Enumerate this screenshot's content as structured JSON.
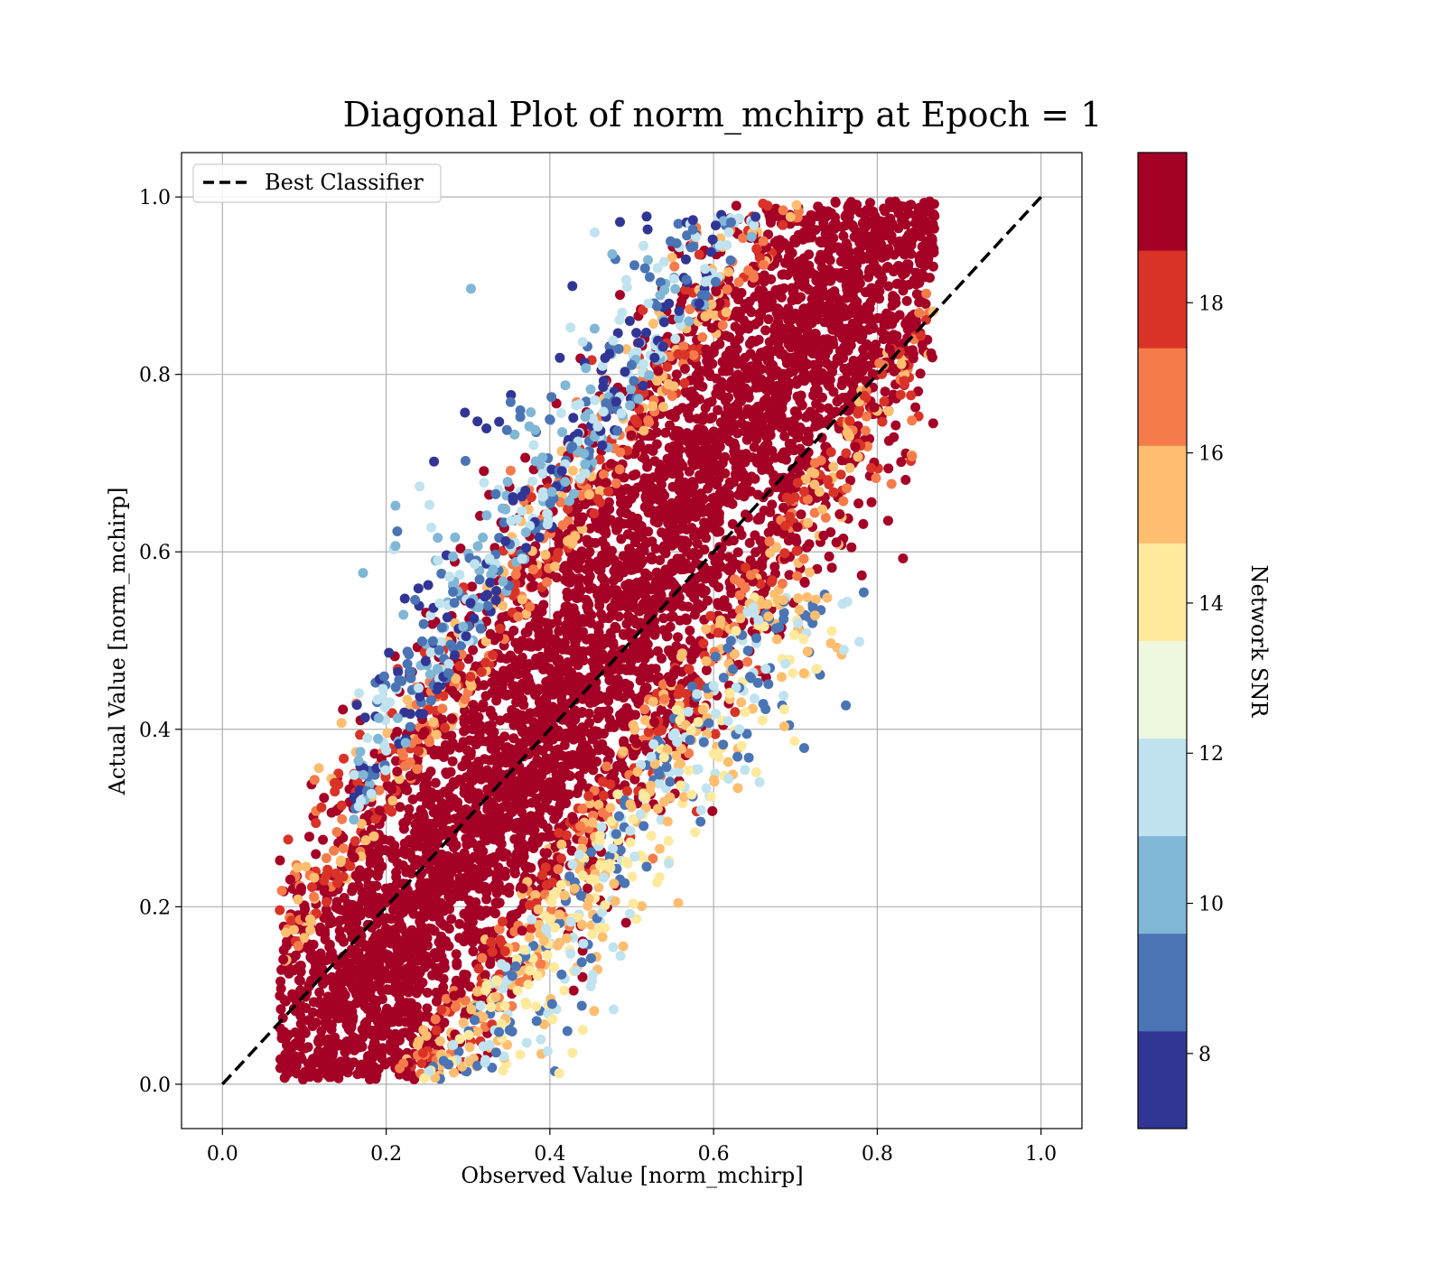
{
  "chart_data": {
    "type": "scatter",
    "title": "Diagonal Plot of norm_mchirp at Epoch = 1",
    "xlabel": "Observed Value [norm_mchirp]",
    "ylabel": "Actual Value [norm_mchirp]",
    "xlim": [
      -0.05,
      1.05
    ],
    "ylim": [
      -0.05,
      1.05
    ],
    "xticks": [
      "0.0",
      "0.2",
      "0.4",
      "0.6",
      "0.8",
      "1.0"
    ],
    "yticks": [
      "0.0",
      "0.2",
      "0.4",
      "0.6",
      "0.8",
      "1.0"
    ],
    "grid": true,
    "legend": {
      "position": "top-left",
      "entries": [
        "Best Classifier"
      ]
    },
    "reference_line": {
      "label": "Best Classifier",
      "style": "dashed",
      "color": "#000000",
      "x": [
        0.0,
        1.0
      ],
      "y": [
        0.0,
        1.0
      ]
    },
    "colorbar": {
      "label": "Network SNR",
      "range": [
        7,
        20
      ],
      "ticks": [
        "8",
        "10",
        "12",
        "14",
        "16",
        "18"
      ],
      "levels": [
        7,
        8.3,
        9.6,
        10.9,
        12.2,
        13.5,
        14.8,
        16.1,
        17.4,
        18.7,
        20
      ],
      "colors": [
        "#313695",
        "#4a74b4",
        "#80b6d6",
        "#c0e3ef",
        "#eef8df",
        "#fee99d",
        "#fdbe70",
        "#f57b4b",
        "#d93328",
        "#a50026"
      ]
    },
    "point_cloud": {
      "description_band": "points lie in a band around y = x, spread roughly ±0.3 in x",
      "x_range": [
        0.07,
        0.87
      ],
      "y_range": [
        0.0,
        1.0
      ],
      "high_snr_color": "#a50026",
      "low_snr_colors_above_diagonal": [
        "#313695",
        "#4a74b4",
        "#80b6d6",
        "#c0e3ef"
      ],
      "low_snr_colors_below_diagonal": [
        "#fdbe70",
        "#fee99d",
        "#c0e3ef",
        "#4a74b4"
      ]
    }
  }
}
